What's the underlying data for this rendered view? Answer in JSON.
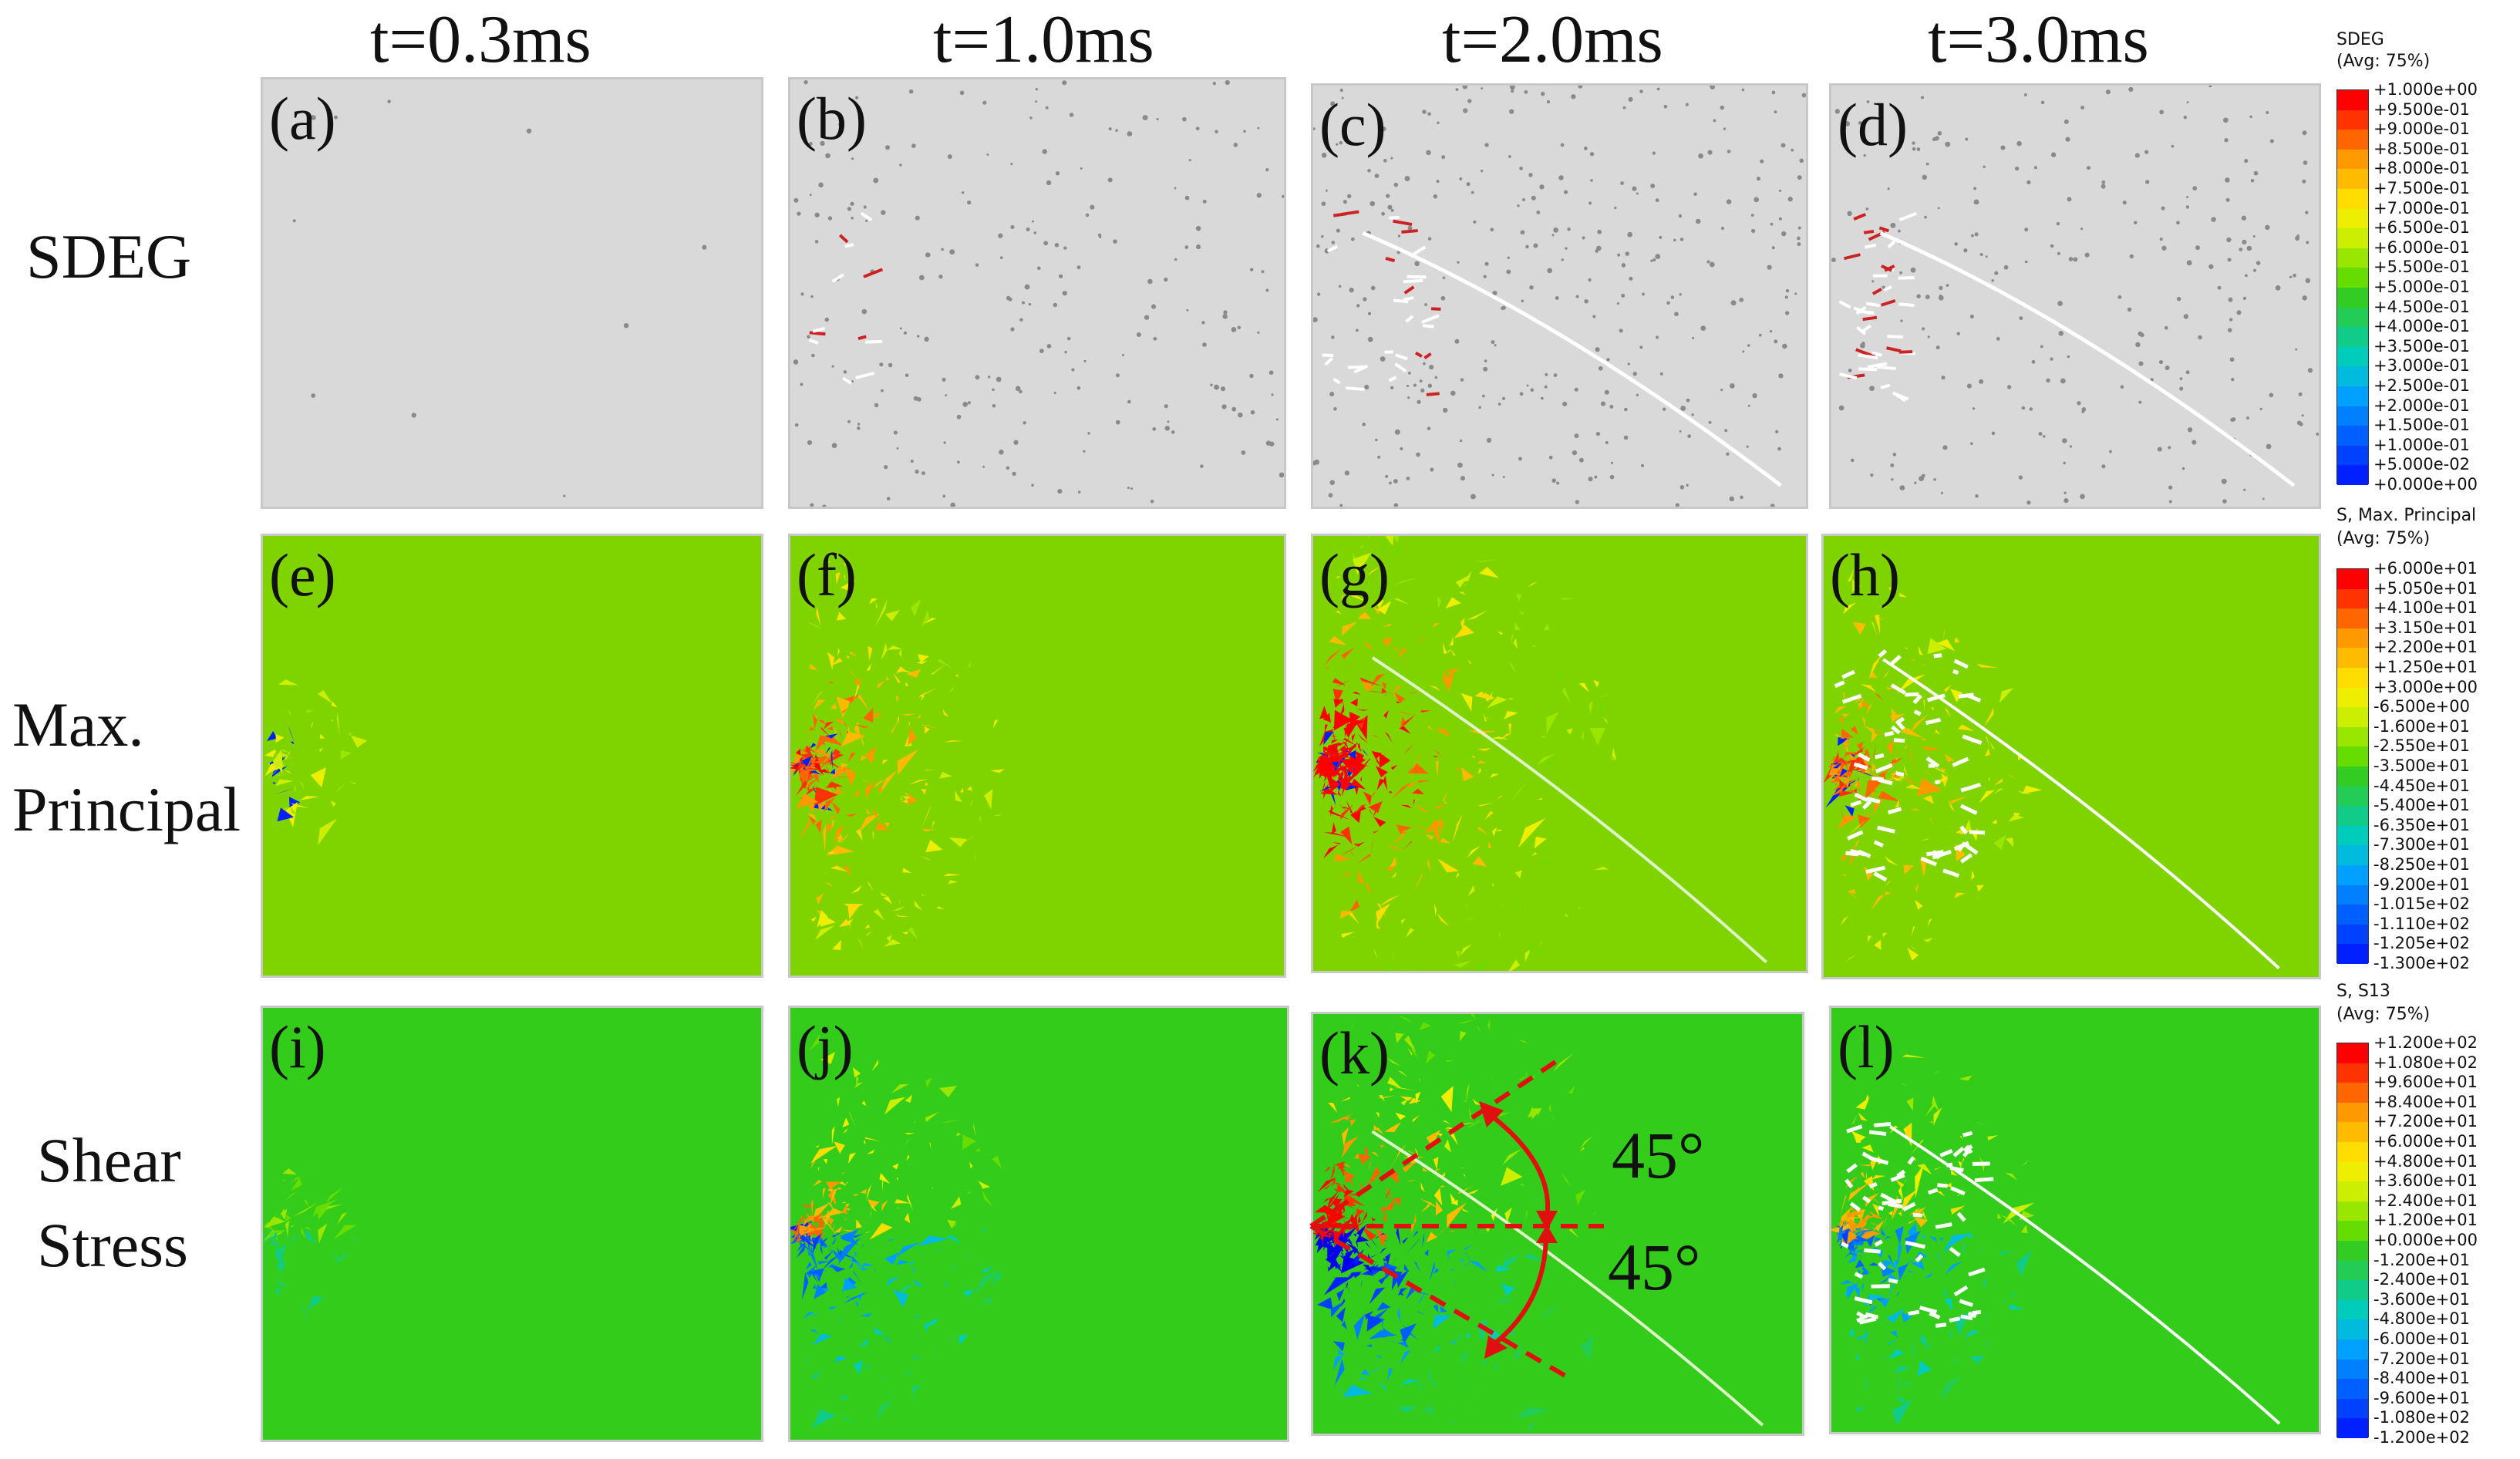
{
  "columns": [
    "t=0.3ms",
    "t=1.0ms",
    "t=2.0ms",
    "t=3.0ms"
  ],
  "rows": [
    {
      "label_lines": [
        "SDEG"
      ]
    },
    {
      "label_lines": [
        "Max.",
        "Principal"
      ]
    },
    {
      "label_lines": [
        "Shear",
        "Stress"
      ]
    }
  ],
  "panel_labels": [
    "(a)",
    "(b)",
    "(c)",
    "(d)",
    "(e)",
    "(f)",
    "(g)",
    "(h)",
    "(i)",
    "(j)",
    "(k)",
    "(l)"
  ],
  "annotations": {
    "angle_upper": "45°",
    "angle_lower": "45°"
  },
  "legends": [
    {
      "title": "SDEG",
      "subtitle": "(Avg: 75%)",
      "ticks": [
        "+1.000e+00",
        "+9.500e-01",
        "+9.000e-01",
        "+8.500e-01",
        "+8.000e-01",
        "+7.500e-01",
        "+7.000e-01",
        "+6.500e-01",
        "+6.000e-01",
        "+5.500e-01",
        "+5.000e-01",
        "+4.500e-01",
        "+4.000e-01",
        "+3.500e-01",
        "+3.000e-01",
        "+2.500e-01",
        "+2.000e-01",
        "+1.500e-01",
        "+1.000e-01",
        "+5.000e-02",
        "+0.000e+00"
      ]
    },
    {
      "title": "S, Max. Principal",
      "subtitle": "(Avg: 75%)",
      "ticks": [
        "+6.000e+01",
        "+5.050e+01",
        "+4.100e+01",
        "+3.150e+01",
        "+2.200e+01",
        "+1.250e+01",
        "+3.000e+00",
        "-6.500e+00",
        "-1.600e+01",
        "-2.550e+01",
        "-3.500e+01",
        "-4.450e+01",
        "-5.400e+01",
        "-6.350e+01",
        "-7.300e+01",
        "-8.250e+01",
        "-9.200e+01",
        "-1.015e+02",
        "-1.110e+02",
        "-1.205e+02",
        "-1.300e+02"
      ]
    },
    {
      "title": "S, S13",
      "subtitle": "(Avg: 75%)",
      "ticks": [
        "+1.200e+02",
        "+1.080e+02",
        "+9.600e+01",
        "+8.400e+01",
        "+7.200e+01",
        "+6.000e+01",
        "+4.800e+01",
        "+3.600e+01",
        "+2.400e+01",
        "+1.200e+01",
        "+0.000e+00",
        "-1.200e+01",
        "-2.400e+01",
        "-3.600e+01",
        "-4.800e+01",
        "-6.000e+01",
        "-7.200e+01",
        "-8.400e+01",
        "-9.600e+01",
        "-1.080e+02",
        "-1.200e+02"
      ]
    }
  ],
  "colors": {
    "sdeg_background": "#d9d9d9",
    "stress_background": "#7fd400",
    "shear_background": "#33cc1a",
    "annotation_red": "#e01010",
    "contour_scale": [
      "#ff0000",
      "#ff3300",
      "#ff6600",
      "#ff9900",
      "#ffbb00",
      "#ffdd00",
      "#eeee00",
      "#ccee00",
      "#99e600",
      "#66dd00",
      "#33cc22",
      "#22cc55",
      "#11cc88",
      "#00ccbb",
      "#00bbdd",
      "#00a0ff",
      "#0080ff",
      "#0060ff",
      "#0040ff",
      "#0020ff",
      "#0000ee"
    ]
  }
}
